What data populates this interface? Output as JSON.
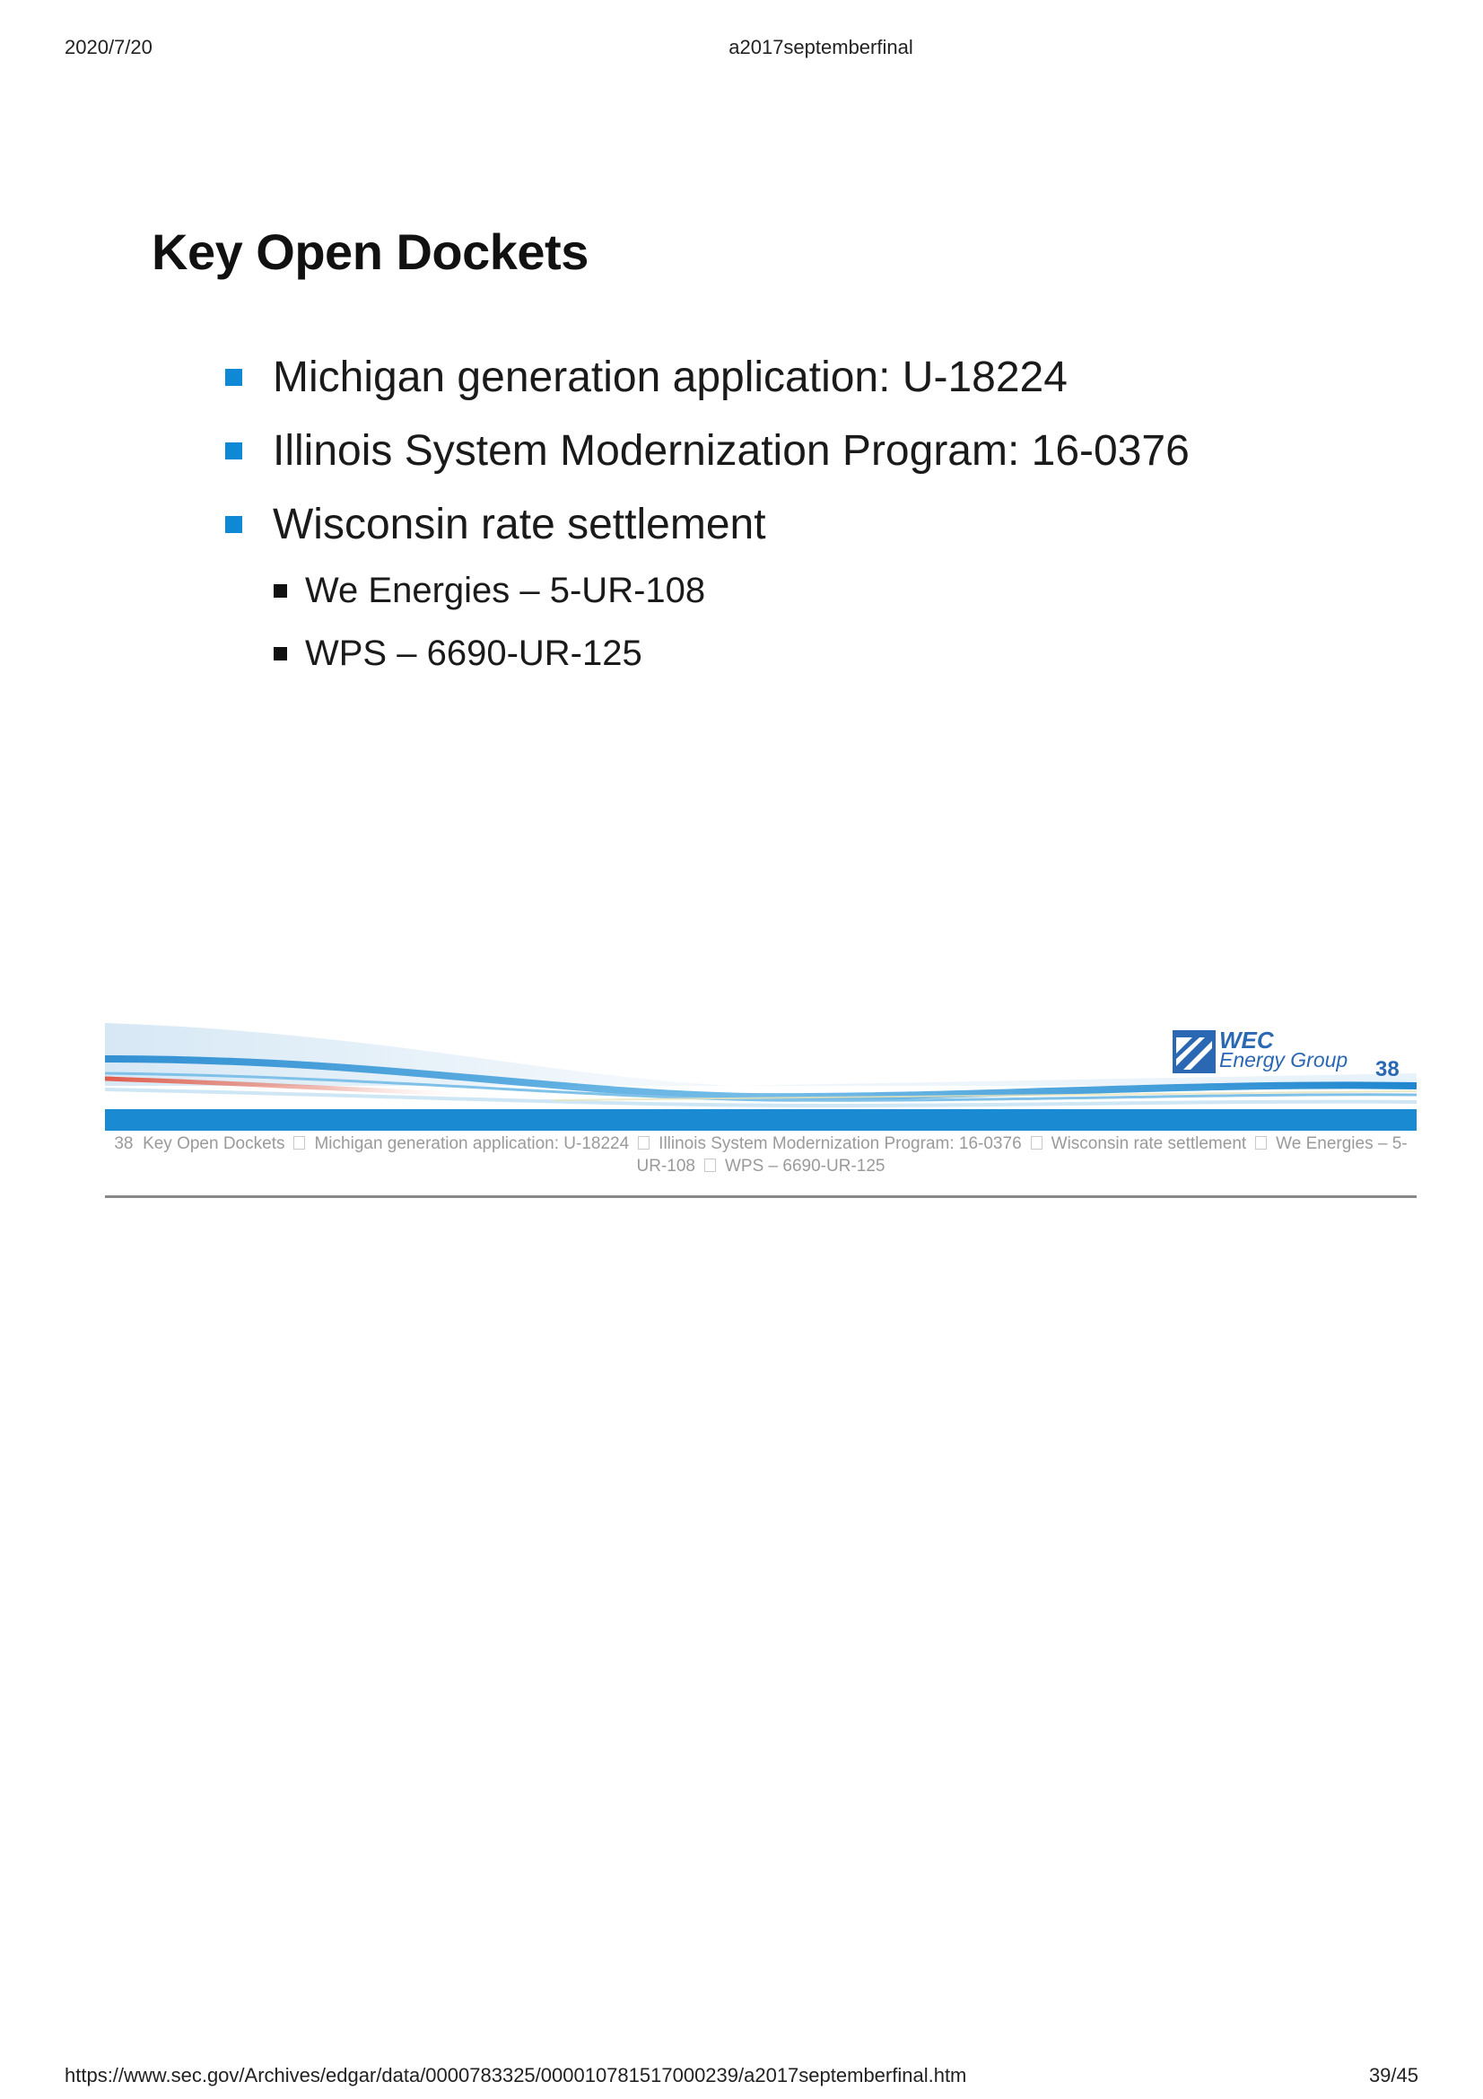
{
  "header": {
    "date": "2020/7/20",
    "doc_title": "a2017septemberfinal"
  },
  "slide": {
    "title": "Key Open Dockets",
    "bullets": [
      "Michigan generation application: U-18224",
      "Illinois System Modernization Program: 16-0376",
      "Wisconsin rate settlement"
    ],
    "sub_bullets": [
      "We Energies – 5-UR-108",
      "WPS – 6690-UR-125"
    ],
    "logo": {
      "line1": "WEC",
      "line2": "Energy Group"
    },
    "page_number": "38",
    "colors": {
      "bullet": "#0f88d6",
      "brand_blue": "#2a68b3",
      "wave_red": "#e05a4a"
    }
  },
  "notes": {
    "number": "38",
    "title": "Key Open Dockets",
    "items": [
      "Michigan generation application: U-18224",
      "Illinois System Modernization Program: 16-0376",
      "Wisconsin rate settlement",
      "We Energies – 5-UR-108",
      "WPS – 6690-UR-125"
    ]
  },
  "footer": {
    "url": "https://www.sec.gov/Archives/edgar/data/0000783325/000010781517000239/a2017septemberfinal.htm",
    "page": "39/45"
  }
}
